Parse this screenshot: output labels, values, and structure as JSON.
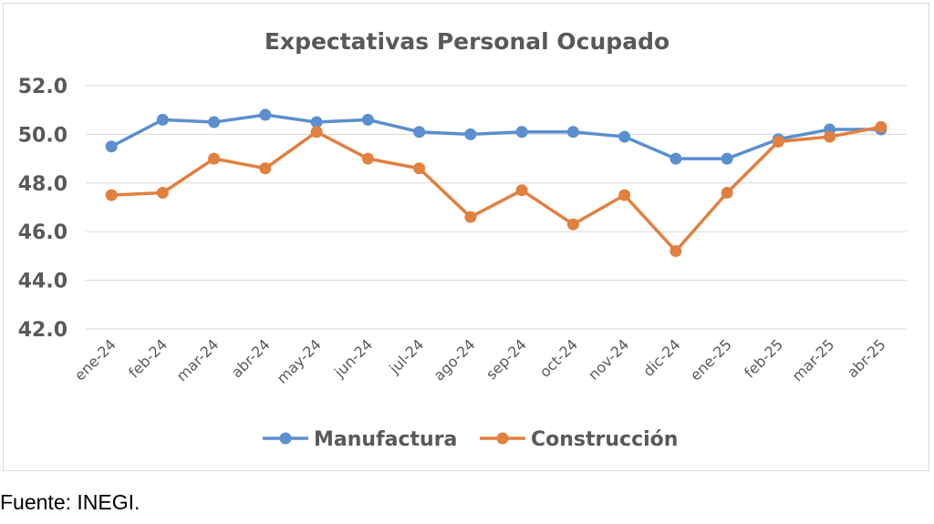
{
  "chart_data": {
    "type": "line",
    "title": "Expectativas Personal Ocupado",
    "xlabel": "",
    "ylabel": "",
    "ylim": [
      42.0,
      52.0
    ],
    "yticks": [
      "42.0",
      "44.0",
      "46.0",
      "48.0",
      "50.0",
      "52.0"
    ],
    "ytick_values": [
      42,
      44,
      46,
      48,
      50,
      52
    ],
    "categories": [
      "ene-24",
      "feb-24",
      "mar-24",
      "abr-24",
      "may-24",
      "jun-24",
      "jul-24",
      "ago-24",
      "sep-24",
      "oct-24",
      "nov-24",
      "dic-24",
      "ene-25",
      "feb-25",
      "mar-25",
      "abr-25"
    ],
    "grid": true,
    "legend_position": "bottom",
    "series": [
      {
        "name": "Manufactura",
        "color": "#5b8fd0",
        "values": [
          49.5,
          50.6,
          50.5,
          50.8,
          50.5,
          50.6,
          50.1,
          50.0,
          50.1,
          50.1,
          49.9,
          49.0,
          49.0,
          49.8,
          50.2,
          50.2
        ]
      },
      {
        "name": "Construcción",
        "color": "#e2803f",
        "values": [
          47.5,
          47.6,
          49.0,
          48.6,
          50.1,
          49.0,
          48.6,
          46.6,
          47.7,
          46.3,
          47.5,
          45.2,
          47.6,
          49.7,
          49.9,
          50.3
        ]
      }
    ]
  },
  "source_note": "Fuente: INEGI."
}
